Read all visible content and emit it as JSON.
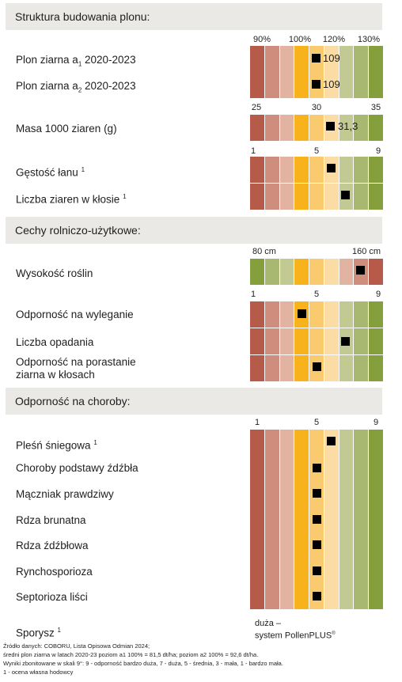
{
  "sections": {
    "s1": "Struktura budowania plonu:",
    "s2": "Cechy rolniczo-użytkowe:",
    "s3": "Odporność na choroby:"
  },
  "colors": {
    "red_to_green": [
      "#b65a4a",
      "#cf8d7d",
      "#e3b3a2",
      "#f7b21c",
      "#f9ca6e",
      "#fbdca4",
      "#c3c992",
      "#a8b870",
      "#849f3b"
    ],
    "green_to_red": [
      "#849f3b",
      "#a8b870",
      "#c3c992",
      "#f7b21c",
      "#f9ca6e",
      "#fbdca4",
      "#e3b3a2",
      "#cf8d7d",
      "#b65a4a"
    ]
  },
  "axes": {
    "pct": [
      "90%",
      "100%",
      "120%",
      "130%"
    ],
    "tkw": [
      "25",
      "30",
      "35"
    ],
    "score_a": [
      "1",
      "5",
      "9"
    ],
    "height": [
      "80 cm",
      "160 cm"
    ],
    "score_b": [
      "1",
      "5",
      "9"
    ],
    "score_c": [
      "1",
      "5",
      "9"
    ]
  },
  "rows": {
    "yield_a1": {
      "label_pre": "Plon ziarna a",
      "sub": "1",
      "label_post": " 2020-2023",
      "value": "109"
    },
    "yield_a2": {
      "label_pre": "Plon ziarna a",
      "sub": "2",
      "label_post": " 2020-2023",
      "value": "109"
    },
    "tkw": {
      "label": "Masa 1000 ziaren (g)",
      "value": "31,3"
    },
    "density": {
      "label": "Gęstość łanu",
      "sup": "1",
      "score": 6
    },
    "grains_per_ear": {
      "label": "Liczba ziaren w kłosie",
      "sup": "1",
      "score": 7
    },
    "plant_height": {
      "label": "Wysokość roślin",
      "score": 8
    },
    "lodging": {
      "label": "Odporność na wyleganie",
      "score": 4
    },
    "falling_number": {
      "label": "Liczba opadania",
      "score": 7
    },
    "sprouting": {
      "label_line1": "Odporność na porastanie",
      "label_line2": "ziarna w kłosach",
      "score": 5
    },
    "snow_mould": {
      "label": "Pleśń śniegowa",
      "sup": "1",
      "score": 6
    },
    "stem_base": {
      "label": "Choroby podstawy źdźbła",
      "score": 5
    },
    "powdery_mildew": {
      "label": "Mączniak prawdziwy",
      "score": 5
    },
    "brown_rust": {
      "label": "Rdza brunatna",
      "score": 5
    },
    "stem_rust": {
      "label": "Rdza źdźbłowa",
      "score": 5
    },
    "rhyncho": {
      "label": "Rynchosporioza",
      "score": 5
    },
    "septoria": {
      "label": "Septorioza liści",
      "score": 5
    },
    "ergot": {
      "label": "Sporysz",
      "sup": "1",
      "note_line1": "duża –",
      "note_line2": "system PollenPLUS",
      "note_sup": "®"
    }
  },
  "footer": {
    "l1": "Źródło danych: COBORU, Lista Opisowa Odmian 2024;",
    "l2": "średni plon ziarna w latach 2020-23  poziom a1 100% =  81,5 dt/ha; poziom a2 100% = 92,6 dt/ha.",
    "l3": "Wyniki zbonitowane w skali 9°: 9 - odporność bardzo duża, 7 - duża, 5 - średnia, 3 -  mała, 1 - bardzo mała.",
    "l4": "1 - ocena własna hodowcy"
  }
}
